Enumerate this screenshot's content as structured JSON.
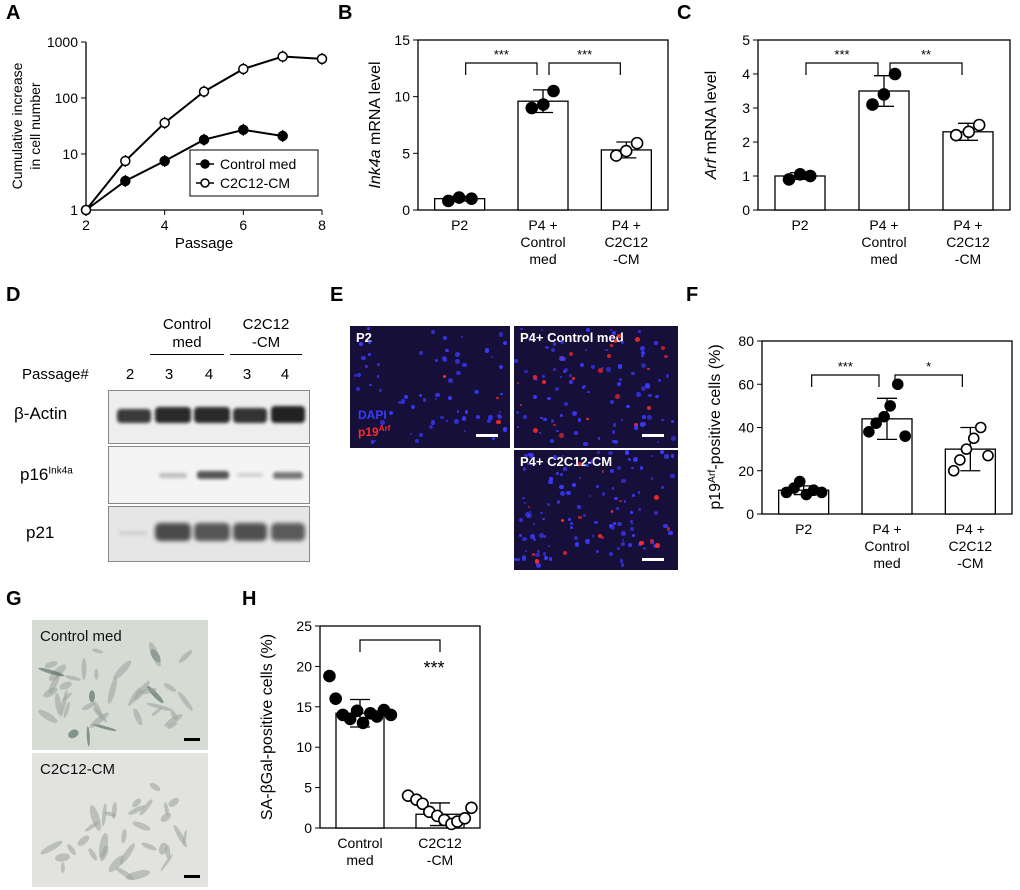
{
  "panels": {
    "A": {
      "label": "A",
      "chart_data": {
        "type": "line",
        "xlabel": "Passage",
        "ylabel": [
          "Cumulative increase",
          "in cell number"
        ],
        "yscale": "log",
        "xlim": [
          2,
          8
        ],
        "ylim": [
          1,
          1000
        ],
        "xticks": [
          "2",
          "4",
          "6",
          "8"
        ],
        "yticks": [
          "1",
          "10",
          "100",
          "1000"
        ],
        "legend_position": "bottom-right",
        "series": [
          {
            "name": "Control med",
            "marker": "filled-circle",
            "x": [
              2,
              3,
              4,
              5,
              6,
              7
            ],
            "y": [
              1,
              3.3,
              7.5,
              18,
              27,
              21
            ]
          },
          {
            "name": "C2C12-CM",
            "marker": "open-circle",
            "x": [
              2,
              3,
              4,
              5,
              6,
              7,
              8
            ],
            "y": [
              1,
              7.5,
              36,
              130,
              330,
              550,
              500
            ]
          }
        ]
      }
    },
    "B": {
      "label": "B",
      "chart_data": {
        "type": "bar",
        "ylabel_italic": "Ink4a",
        "ylabel_rest": " mRNA level",
        "ylim": [
          0,
          15
        ],
        "yticks": [
          "0",
          "5",
          "10",
          "15"
        ],
        "categories": [
          [
            "P2"
          ],
          [
            "P4 +",
            "Control",
            "med"
          ],
          [
            "P4 +",
            "C2C12",
            "-CM"
          ]
        ],
        "values": [
          1.0,
          9.6,
          5.3
        ],
        "errors": [
          0.2,
          1.0,
          0.7
        ],
        "markers": [
          "filled",
          "filled",
          "open"
        ],
        "points": [
          [
            0.8,
            1.1,
            1.0
          ],
          [
            9.0,
            9.3,
            10.5
          ],
          [
            4.8,
            5.2,
            5.9
          ]
        ],
        "significance": [
          {
            "pair": [
              0,
              1
            ],
            "label": "***"
          },
          {
            "pair": [
              1,
              2
            ],
            "label": "***"
          }
        ]
      }
    },
    "C": {
      "label": "C",
      "chart_data": {
        "type": "bar",
        "ylabel_italic": "Arf",
        "ylabel_rest": " mRNA level",
        "ylim": [
          0,
          5
        ],
        "yticks": [
          "0",
          "1",
          "2",
          "3",
          "4",
          "5"
        ],
        "categories": [
          [
            "P2"
          ],
          [
            "P4 +",
            "Control",
            "med"
          ],
          [
            "P4 +",
            "C2C12",
            "-CM"
          ]
        ],
        "values": [
          1.0,
          3.5,
          2.3
        ],
        "errors": [
          0.1,
          0.45,
          0.25
        ],
        "markers": [
          "filled",
          "filled",
          "open"
        ],
        "points": [
          [
            0.9,
            1.05,
            1.0
          ],
          [
            3.1,
            3.4,
            4.0
          ],
          [
            2.2,
            2.3,
            2.5
          ]
        ],
        "significance": [
          {
            "pair": [
              0,
              1
            ],
            "label": "***"
          },
          {
            "pair": [
              1,
              2
            ],
            "label": "**"
          }
        ]
      }
    },
    "D": {
      "label": "D",
      "group_control": [
        "Control",
        "med"
      ],
      "group_cm": [
        "C2C12",
        "-CM"
      ],
      "passage_label": "Passage#",
      "lanes": [
        "2",
        "3",
        "4",
        "3",
        "4"
      ],
      "rows": [
        {
          "label": "β-Actin",
          "sup": ""
        },
        {
          "label": "p16",
          "sup": "Ink4a"
        },
        {
          "label": "p21",
          "sup": ""
        }
      ]
    },
    "E": {
      "label": "E",
      "images": [
        {
          "caption": "P2"
        },
        {
          "caption": "P4+ Control med"
        },
        {
          "caption": "P4+ C2C12-CM"
        }
      ],
      "legend_dapi": "DAPI",
      "legend_p19": "p19",
      "legend_p19_sup": "Arf",
      "colors": {
        "dapi": "#3a3aff",
        "p19": "#ff2a2a",
        "background": "#150f3a"
      }
    },
    "F": {
      "label": "F",
      "chart_data": {
        "type": "bar",
        "ylabel_pre": "p19",
        "ylabel_sup": "Arf",
        "ylabel_post": "-positive cells (%)",
        "ylim": [
          0,
          80
        ],
        "yticks": [
          "0",
          "20",
          "40",
          "60",
          "80"
        ],
        "categories": [
          [
            "P2"
          ],
          [
            "P4 +",
            "Control",
            "med"
          ],
          [
            "P4 +",
            "C2C12",
            "-CM"
          ]
        ],
        "values": [
          11,
          44,
          30
        ],
        "errors": [
          2,
          9.5,
          10
        ],
        "markers": [
          "filled",
          "filled",
          "open"
        ],
        "points": [
          [
            10,
            12,
            15,
            9,
            11,
            10
          ],
          [
            38,
            42,
            45,
            50,
            60,
            36
          ],
          [
            20,
            25,
            30,
            35,
            40,
            27
          ]
        ],
        "significance": [
          {
            "pair": [
              0,
              1
            ],
            "label": "***"
          },
          {
            "pair": [
              1,
              2
            ],
            "label": "*"
          }
        ]
      }
    },
    "G": {
      "label": "G",
      "images": [
        {
          "caption": "Control med"
        },
        {
          "caption": "C2C12-CM"
        }
      ]
    },
    "H": {
      "label": "H",
      "chart_data": {
        "type": "bar",
        "ylabel": "SA-βGal-positive cells (%)",
        "ylim": [
          0,
          25
        ],
        "yticks": [
          "0",
          "5",
          "10",
          "15",
          "20",
          "25"
        ],
        "categories": [
          [
            "Control",
            "med"
          ],
          [
            "C2C12",
            "-CM"
          ]
        ],
        "values": [
          14.2,
          1.7
        ],
        "errors": [
          1.7,
          1.4
        ],
        "markers": [
          "filled",
          "open"
        ],
        "points": [
          [
            18.8,
            16.0,
            14.0,
            13.5,
            14.5,
            13.0,
            14.2,
            13.8,
            14.6,
            14.0
          ],
          [
            4.0,
            3.5,
            3.0,
            2.0,
            1.5,
            1.0,
            0.5,
            0.8,
            1.2,
            2.5
          ]
        ],
        "significance": [
          {
            "pair": [
              0,
              1
            ],
            "label": "***"
          }
        ]
      }
    }
  }
}
